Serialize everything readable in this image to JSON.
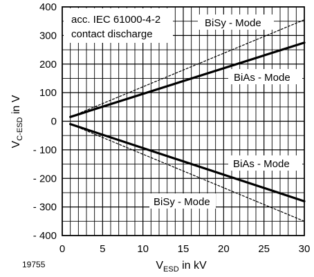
{
  "chart_data": {
    "type": "line",
    "x": [
      1,
      30
    ],
    "series": [
      {
        "values": [
          15,
          275
        ],
        "style": "solid"
      },
      {
        "values": [
          -10,
          -280
        ],
        "style": "solid"
      },
      {
        "values": [
          15,
          355
        ],
        "style": "dashed"
      },
      {
        "values": [
          -10,
          -350
        ],
        "style": "dashed"
      }
    ],
    "xlim": [
      0,
      30
    ],
    "ylim": [
      -400,
      400
    ],
    "xticks": [
      "0",
      "5",
      "10",
      "15",
      "20",
      "25",
      "30"
    ],
    "yticks": [
      "400",
      "300",
      "200",
      "100",
      "0",
      "- 100",
      "- 200",
      "- 300",
      "- 400"
    ],
    "xlabel": {
      "main": "V",
      "sub": "ESD",
      "rest": " in kV"
    },
    "ylabel": {
      "main": "V",
      "sub": "C-ESD",
      "rest": " in V"
    },
    "grid": true,
    "annotations": {
      "standard_line1": "acc. IEC 61000-4-2",
      "standard_line2": "contact discharge",
      "bisy_top": "BiSy - Mode",
      "bias_top": "BiAs - Mode",
      "bias_bottom": "BiAs - Mode",
      "bisy_bottom": "BiSy - Mode"
    },
    "figure_number": "19755"
  }
}
